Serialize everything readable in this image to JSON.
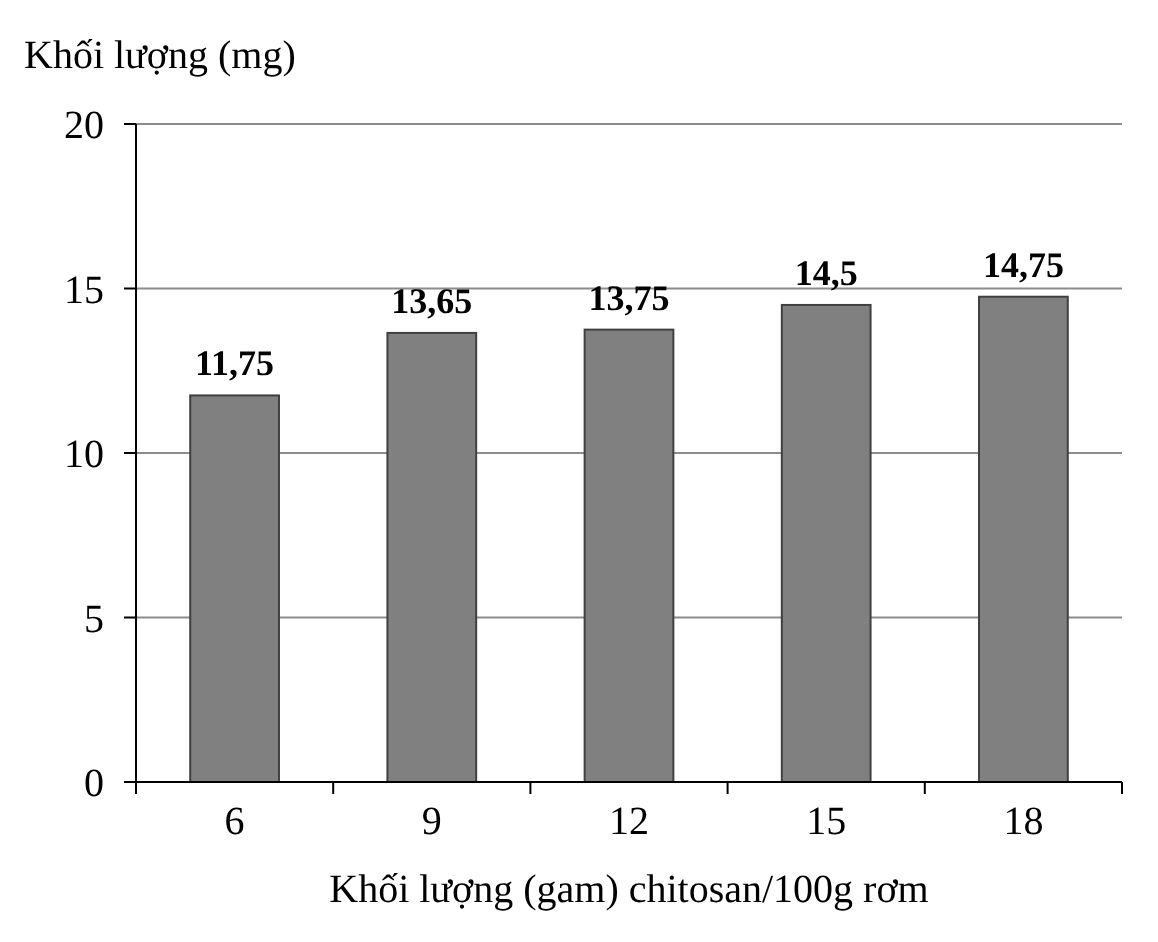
{
  "chart_data": {
    "type": "bar",
    "ylabel": "Khối lượng (mg)",
    "xlabel": "Khối lượng (gam) chitosan/100g rơm",
    "categories": [
      "6",
      "9",
      "12",
      "15",
      "18"
    ],
    "values": [
      11.75,
      13.65,
      13.75,
      14.5,
      14.75
    ],
    "value_labels": [
      "11,75",
      "13,65",
      "13,75",
      "14,5",
      "14,75"
    ],
    "color": "#808080",
    "ylim": [
      0,
      20
    ],
    "yticks": [
      0,
      5,
      10,
      15,
      20
    ],
    "grid": "y"
  }
}
